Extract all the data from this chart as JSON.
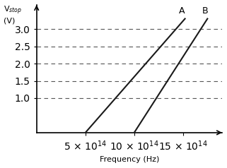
{
  "title": "",
  "ylabel": "V$_{stop}$\n(V)",
  "xlabel": "Frequency (Hz)",
  "xlim": [
    0,
    1900000000000000.0
  ],
  "ylim": [
    0,
    3.7
  ],
  "xticks": [
    500000000000000.0,
    1000000000000000.0,
    1500000000000000.0
  ],
  "xtick_labels": [
    "5 × 10$^{14}$",
    "10 × 10$^{14}$",
    "15 × 10$^{14}$"
  ],
  "yticks": [
    1.0,
    1.5,
    2.0,
    2.5,
    3.0
  ],
  "dashed_y": [
    1.0,
    1.5,
    2.0,
    2.5,
    3.0
  ],
  "line_A": {
    "x": [
      500000000000000.0,
      1520000000000000.0
    ],
    "y": [
      0,
      3.3
    ]
  },
  "line_B": {
    "x": [
      1000000000000000.0,
      1750000000000000.0
    ],
    "y": [
      0,
      3.3
    ]
  },
  "label_A": "A",
  "label_B": "B",
  "line_color": "#1a1a1a",
  "dashed_color": "#555555",
  "background_color": "#ffffff"
}
